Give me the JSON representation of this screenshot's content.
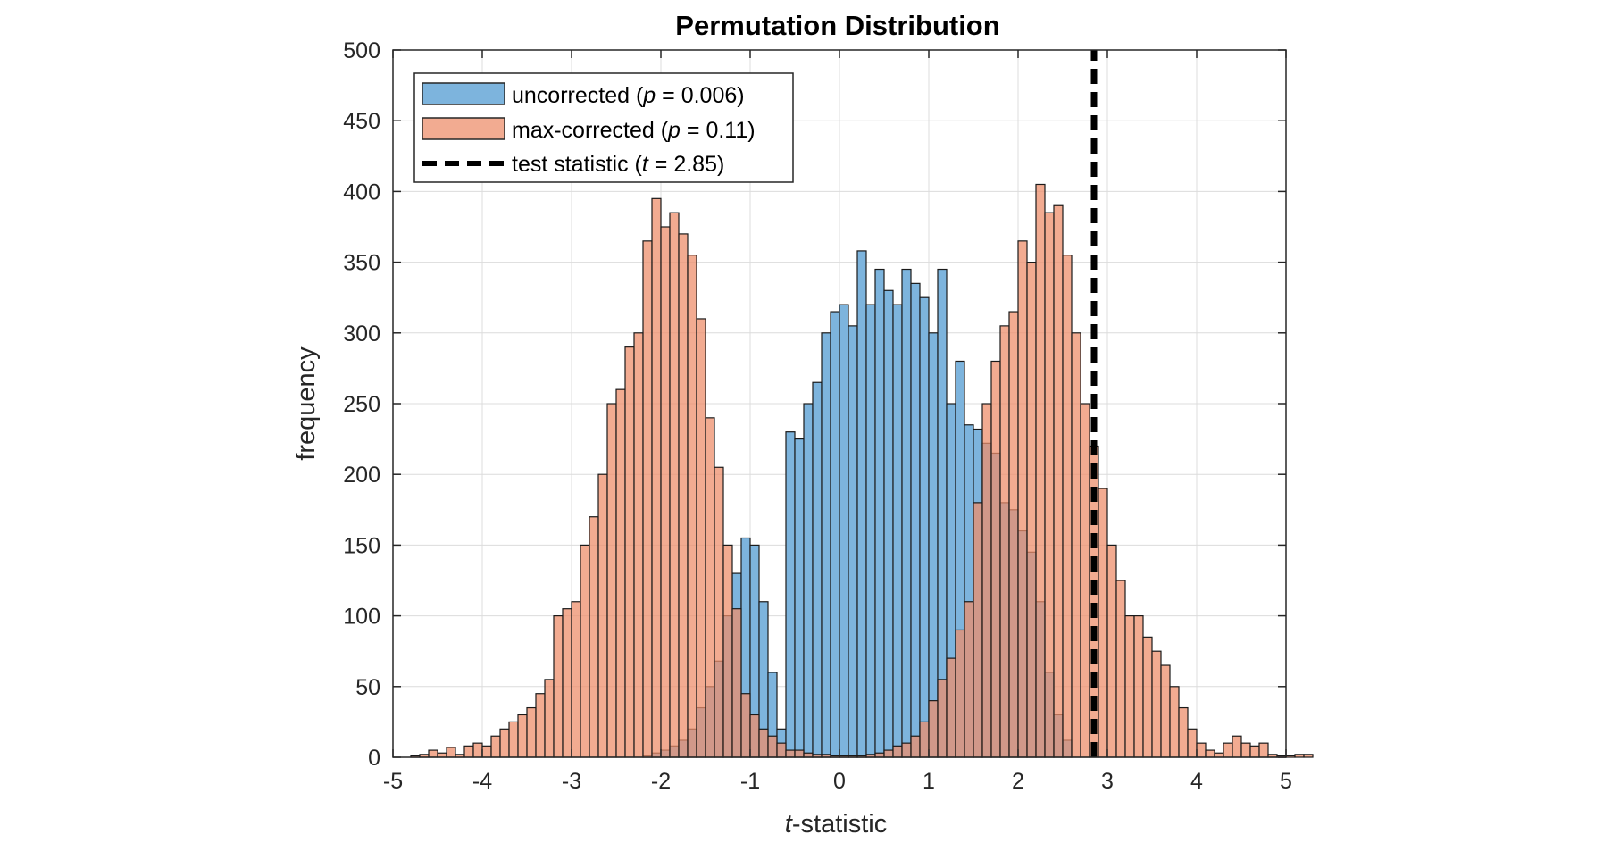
{
  "chart_data": {
    "type": "histogram",
    "title": "Permutation Distribution",
    "xlabel_italic": "t",
    "xlabel_rest": "-statistic",
    "ylabel": "frequency",
    "xlim": [
      -5,
      5
    ],
    "ylim": [
      0,
      500
    ],
    "xticks": [
      -5,
      -4,
      -3,
      -2,
      -1,
      0,
      1,
      2,
      3,
      4,
      5
    ],
    "yticks": [
      0,
      50,
      100,
      150,
      200,
      250,
      300,
      350,
      400,
      450,
      500
    ],
    "grid": true,
    "legend_position": "top-left",
    "series": [
      {
        "name_parts": [
          "uncorrected (",
          "p",
          " = 0.006)"
        ],
        "color": "#7db4dd",
        "alpha": 1.0,
        "bin_start": -2.2,
        "bin_width": 0.1,
        "values": [
          1,
          3,
          5,
          8,
          12,
          20,
          35,
          50,
          68,
          100,
          130,
          155,
          150,
          110,
          60,
          20,
          230,
          225,
          250,
          265,
          300,
          315,
          320,
          305,
          358,
          320,
          345,
          330,
          320,
          345,
          335,
          325,
          300,
          345,
          250,
          280,
          235,
          232,
          222,
          215,
          180,
          175,
          160,
          145,
          110,
          60,
          30,
          12
        ]
      },
      {
        "name_parts": [
          "max-corrected (",
          "p",
          " = 0.11)"
        ],
        "color": "#ed8f6c",
        "alpha": 0.75,
        "bin_start": -4.8,
        "bin_width": 0.1,
        "values": [
          1,
          2,
          5,
          3,
          7,
          2,
          8,
          10,
          8,
          15,
          20,
          25,
          30,
          35,
          45,
          55,
          100,
          105,
          110,
          150,
          170,
          200,
          250,
          260,
          290,
          300,
          365,
          395,
          375,
          385,
          370,
          355,
          310,
          240,
          205,
          150,
          105,
          45,
          30,
          20,
          15,
          10,
          5,
          5,
          3,
          2,
          2,
          1,
          1,
          1,
          1,
          2,
          3,
          5,
          8,
          10,
          15,
          25,
          40,
          55,
          70,
          90,
          110,
          180,
          250,
          280,
          305,
          315,
          365,
          350,
          405,
          385,
          390,
          355,
          300,
          250,
          220,
          190,
          150,
          125,
          100,
          100,
          85,
          75,
          65,
          50,
          35,
          20,
          10,
          5,
          3,
          10,
          15,
          10,
          8,
          10,
          2,
          1,
          1,
          2,
          2
        ]
      }
    ],
    "reference_line": {
      "x": 2.85,
      "name_parts": [
        "test statistic (",
        "t",
        " = 2.85)"
      ],
      "color": "#000000"
    }
  }
}
